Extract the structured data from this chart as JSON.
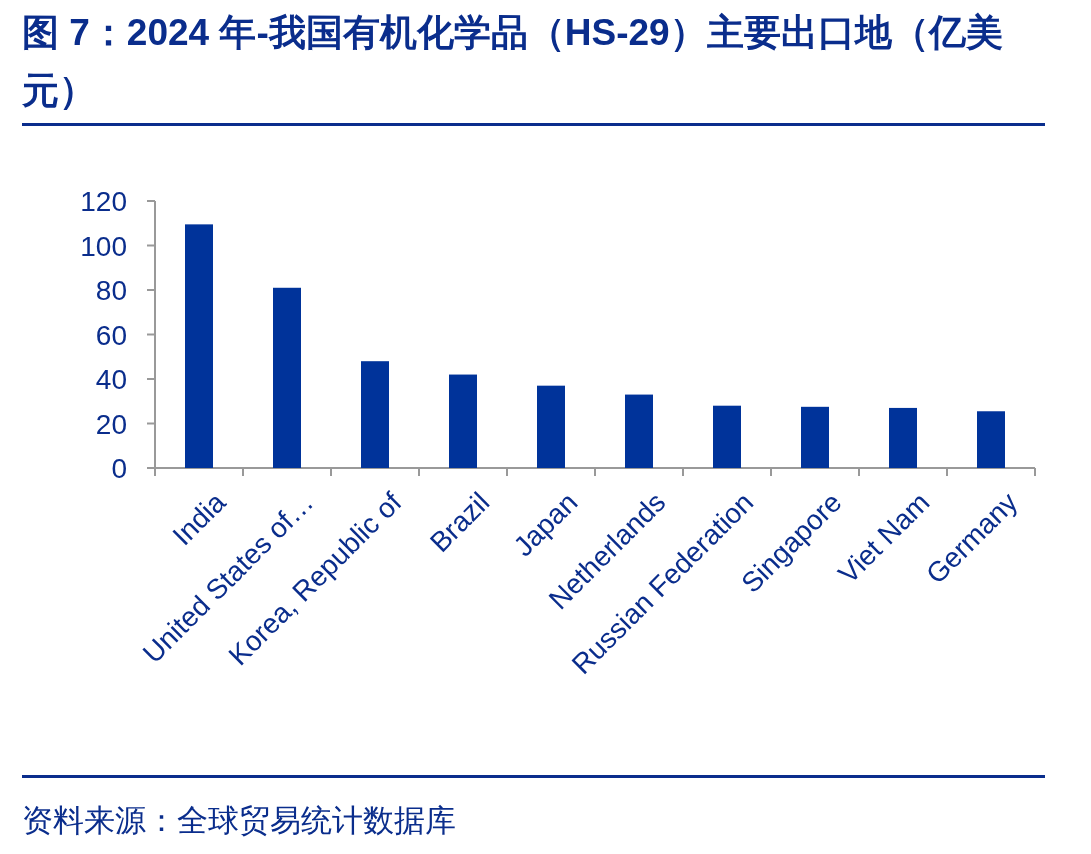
{
  "chart_data": {
    "type": "bar",
    "title": "图 7：2024 年-我国有机化学品（HS-29）主要出口地（亿美元）",
    "categories": [
      "India",
      "United States of…",
      "Korea, Republic of",
      "Brazil",
      "Japan",
      "Netherlands",
      "Russian Federation",
      "Singapore",
      "Viet Nam",
      "Germany"
    ],
    "values": [
      109.5,
      81,
      48,
      42,
      37,
      33,
      28,
      27.5,
      27,
      25.5
    ],
    "color": "#00339a",
    "ylim": [
      0,
      120
    ],
    "yticks": [
      0,
      20,
      40,
      60,
      80,
      100,
      120
    ],
    "grid": false,
    "annotations": [
      "资料来源：全球贸易统计数据库"
    ]
  }
}
